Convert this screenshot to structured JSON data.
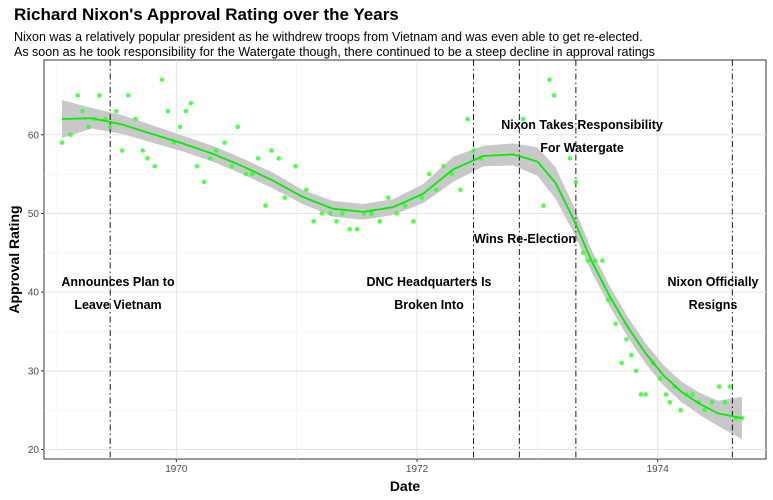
{
  "chart_data": {
    "type": "scatter",
    "title": "Richard Nixon's Approval Rating over the Years",
    "subtitle": [
      "Nixon was a relatively popular president as he withdrew troops from Vietnam and was even able to get re-elected.",
      "As soon as he took responsibility for the Watergate though, there continued to be a steep decline in approval ratings"
    ],
    "xlabel": "Date",
    "ylabel": "Approval Rating",
    "xlim": [
      1968.9,
      1974.9
    ],
    "ylim": [
      18.8,
      69.5
    ],
    "x_ticks": [
      1970,
      1972,
      1974
    ],
    "y_ticks": [
      20,
      30,
      40,
      50,
      60
    ],
    "grid": true,
    "colors": {
      "points": "#33ff33",
      "smooth": "#00ee00",
      "ribbon": "#c8c8c8",
      "panel_border": "#333333"
    },
    "points": [
      [
        1969.05,
        59
      ],
      [
        1969.12,
        60
      ],
      [
        1969.18,
        65
      ],
      [
        1969.22,
        63
      ],
      [
        1969.27,
        61
      ],
      [
        1969.32,
        62
      ],
      [
        1969.36,
        65
      ],
      [
        1969.41,
        62
      ],
      [
        1969.45,
        61
      ],
      [
        1969.5,
        63
      ],
      [
        1969.55,
        58
      ],
      [
        1969.6,
        65
      ],
      [
        1969.66,
        62
      ],
      [
        1969.72,
        58
      ],
      [
        1969.76,
        57
      ],
      [
        1969.82,
        56
      ],
      [
        1969.88,
        67
      ],
      [
        1969.93,
        63
      ],
      [
        1969.98,
        59
      ],
      [
        1970.03,
        61
      ],
      [
        1970.08,
        63
      ],
      [
        1970.12,
        64
      ],
      [
        1970.17,
        56
      ],
      [
        1970.23,
        54
      ],
      [
        1970.28,
        57
      ],
      [
        1970.33,
        58
      ],
      [
        1970.4,
        59
      ],
      [
        1970.46,
        56
      ],
      [
        1970.51,
        61
      ],
      [
        1970.58,
        55
      ],
      [
        1970.63,
        55
      ],
      [
        1970.68,
        57
      ],
      [
        1970.74,
        51
      ],
      [
        1970.79,
        58
      ],
      [
        1970.85,
        57
      ],
      [
        1970.9,
        52
      ],
      [
        1970.99,
        56
      ],
      [
        1971.08,
        53
      ],
      [
        1971.14,
        49
      ],
      [
        1971.21,
        50
      ],
      [
        1971.28,
        50
      ],
      [
        1971.33,
        49
      ],
      [
        1971.38,
        50
      ],
      [
        1971.44,
        48
      ],
      [
        1971.5,
        48
      ],
      [
        1971.56,
        50
      ],
      [
        1971.62,
        50
      ],
      [
        1971.69,
        49
      ],
      [
        1971.76,
        52
      ],
      [
        1971.83,
        50
      ],
      [
        1971.9,
        51
      ],
      [
        1971.97,
        49
      ],
      [
        1972.04,
        52
      ],
      [
        1972.1,
        55
      ],
      [
        1972.16,
        53
      ],
      [
        1972.22,
        56
      ],
      [
        1972.29,
        55
      ],
      [
        1972.36,
        53
      ],
      [
        1972.42,
        62
      ],
      [
        1972.47,
        58
      ],
      [
        1972.53,
        57
      ],
      [
        1972.88,
        62
      ],
      [
        1973.05,
        51
      ],
      [
        1973.1,
        67
      ],
      [
        1973.14,
        65
      ],
      [
        1973.27,
        57
      ],
      [
        1973.32,
        54
      ],
      [
        1973.38,
        45
      ],
      [
        1973.42,
        44
      ],
      [
        1973.48,
        44
      ],
      [
        1973.54,
        44
      ],
      [
        1973.59,
        39
      ],
      [
        1973.65,
        36
      ],
      [
        1973.7,
        31
      ],
      [
        1973.74,
        34
      ],
      [
        1973.78,
        32
      ],
      [
        1973.82,
        30
      ],
      [
        1973.86,
        27
      ],
      [
        1973.9,
        27
      ],
      [
        1973.96,
        31
      ],
      [
        1974.02,
        29
      ],
      [
        1974.07,
        27
      ],
      [
        1974.1,
        26
      ],
      [
        1974.14,
        28
      ],
      [
        1974.19,
        25
      ],
      [
        1974.24,
        27
      ],
      [
        1974.29,
        27
      ],
      [
        1974.34,
        26
      ],
      [
        1974.39,
        25
      ],
      [
        1974.45,
        26
      ],
      [
        1974.51,
        28
      ],
      [
        1974.56,
        26
      ],
      [
        1974.6,
        28
      ],
      [
        1974.65,
        24
      ],
      [
        1974.7,
        24
      ]
    ],
    "smooth": {
      "x": [
        1969.05,
        1969.3,
        1969.55,
        1969.8,
        1970.05,
        1970.3,
        1970.55,
        1970.8,
        1971.05,
        1971.3,
        1971.55,
        1971.8,
        1972.05,
        1972.3,
        1972.55,
        1972.8,
        1973.0,
        1973.15,
        1973.3,
        1973.45,
        1973.6,
        1973.75,
        1973.9,
        1974.05,
        1974.2,
        1974.35,
        1974.5,
        1974.7
      ],
      "y": [
        62.0,
        62.1,
        61.3,
        60.1,
        58.9,
        57.6,
        56.0,
        54.2,
        52.1,
        50.6,
        50.2,
        50.8,
        52.5,
        55.6,
        57.3,
        57.5,
        56.6,
        53.9,
        49.3,
        44.0,
        39.5,
        35.6,
        32.2,
        29.4,
        27.3,
        25.8,
        24.6,
        24.0
      ],
      "lower": [
        59.6,
        60.8,
        60.1,
        59.0,
        57.9,
        56.6,
        55.0,
        53.2,
        51.2,
        49.6,
        49.2,
        49.8,
        51.3,
        54.0,
        56.0,
        56.1,
        54.8,
        51.9,
        47.6,
        42.6,
        38.2,
        34.3,
        30.9,
        28.1,
        26.0,
        24.4,
        23.0,
        21.3
      ],
      "upper": [
        64.4,
        63.4,
        62.5,
        61.2,
        59.9,
        58.6,
        57.0,
        55.2,
        53.0,
        51.6,
        51.2,
        51.8,
        53.7,
        57.2,
        58.6,
        58.9,
        58.4,
        55.9,
        51.0,
        45.4,
        40.8,
        36.9,
        33.5,
        30.7,
        28.6,
        27.2,
        26.2,
        26.7
      ]
    },
    "events": [
      {
        "x": 1969.45,
        "label": [
          "Announces Plan to",
          "Leave Vietnam"
        ]
      },
      {
        "x": 1972.47,
        "label": [
          "DNC Headquarters Is",
          "Broken Into"
        ]
      },
      {
        "x": 1972.85,
        "label": [
          "Wins Re-Election"
        ]
      },
      {
        "x": 1973.32,
        "label": [
          "Nixon Takes Responsibility",
          "For Watergate"
        ]
      },
      {
        "x": 1974.62,
        "label": [
          "Nixon Officially",
          "Resigns"
        ]
      }
    ]
  }
}
